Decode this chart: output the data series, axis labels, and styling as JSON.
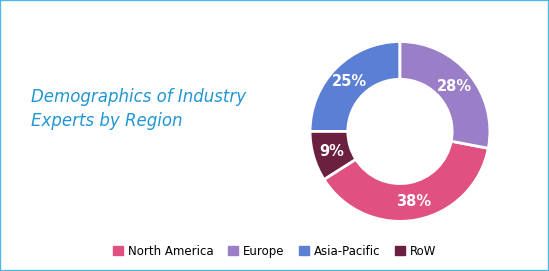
{
  "title": "Demographics of Industry\nExperts by Region",
  "title_color": "#2196d3",
  "title_fontsize": 12,
  "labels": [
    "North America",
    "Europe",
    "Asia-Pacific",
    "RoW"
  ],
  "colors": [
    "#e05080",
    "#9b7ec8",
    "#5b7fd4",
    "#6b2040"
  ],
  "slices": [
    38,
    28,
    25,
    9
  ],
  "pct_labels": [
    "38%",
    "28%",
    "25%",
    "9%"
  ],
  "background_color": "#ffffff",
  "border_color": "#4db8e8",
  "legend_fontsize": 8.5,
  "pct_fontsize": 10.5,
  "pct_color": "#ffffff",
  "donut_width": 0.42
}
